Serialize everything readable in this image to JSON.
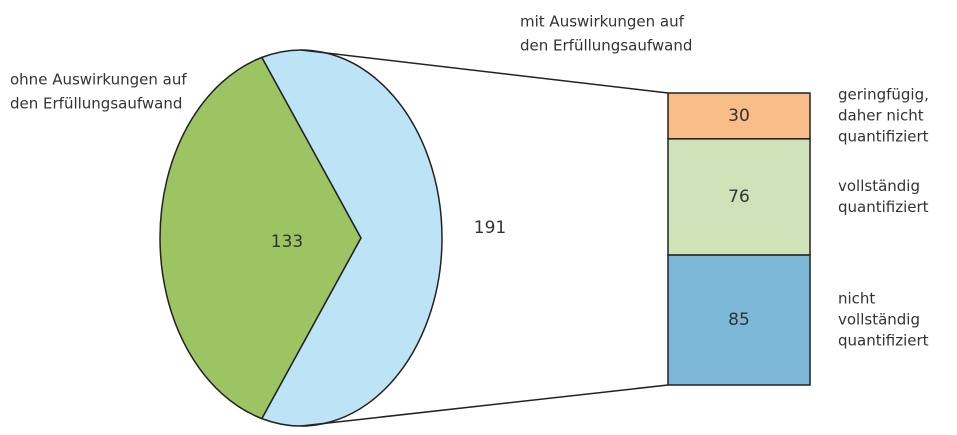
{
  "chart_data": {
    "type": "pie-of-bar",
    "pie": {
      "labels": [
        [
          "ohne Auswirkungen auf",
          "den Erfüllungsaufwand"
        ],
        [
          "mit Auswirkungen auf",
          "den Erfüllungsaufwand"
        ]
      ],
      "values": [
        133,
        191
      ],
      "colors": [
        "#9dc462",
        "#bde3f6"
      ]
    },
    "bar": {
      "labels": [
        [
          "geringfügig,",
          "daher nicht",
          "quantifiziert"
        ],
        [
          "vollständig",
          "quantifiziert"
        ],
        [
          "nicht",
          "vollständig",
          "quantifiziert"
        ]
      ],
      "values": [
        30,
        76,
        85
      ],
      "colors": [
        "#f8bd88",
        "#d0e3b8",
        "#7cb8d8"
      ]
    }
  }
}
